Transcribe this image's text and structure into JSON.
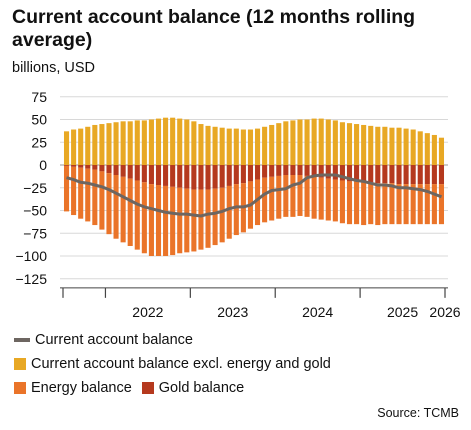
{
  "chart_data": {
    "type": "bar",
    "title": "Current account balance (12 months rolling average)",
    "ylabel": "billions, USD",
    "source": "Source: TCMB",
    "ylim": [
      -135,
      80
    ],
    "yticks": [
      75,
      50,
      25,
      0,
      -25,
      -50,
      -75,
      -100,
      -125
    ],
    "ytick_labels": [
      "75",
      "50",
      "25",
      "0",
      "−25",
      "−50",
      "−75",
      "−100",
      "−125"
    ],
    "x_labels": [
      "2022",
      "2023",
      "2024",
      "2025",
      "2026"
    ],
    "x_start": "2021-07",
    "x_end": "2026-01",
    "colors": {
      "current_account": "#6d6661",
      "excl_energy_gold": "#e8a824",
      "energy": "#ea7429",
      "gold": "#b5391e"
    },
    "series": [
      {
        "name": "Current account balance excl. energy and gold",
        "key": "excl_energy_gold",
        "values": [
          37,
          39,
          40,
          42,
          44,
          45,
          46,
          47,
          48,
          48,
          49,
          49,
          50,
          51,
          52,
          52,
          51,
          50,
          48,
          45,
          43,
          42,
          41,
          40,
          40,
          39,
          39,
          40,
          42,
          44,
          46,
          48,
          49,
          50,
          50,
          51,
          51,
          50,
          49,
          47,
          46,
          45,
          44,
          43,
          42,
          42,
          41,
          41,
          40,
          39,
          37,
          35,
          33,
          30
        ]
      },
      {
        "name": "Energy balance",
        "key": "energy",
        "values": [
          -50,
          -53,
          -56,
          -58,
          -61,
          -64,
          -67,
          -70,
          -72,
          -74,
          -76,
          -78,
          -79,
          -78,
          -77,
          -75,
          -72,
          -70,
          -68,
          -66,
          -64,
          -62,
          -60,
          -58,
          -56,
          -54,
          -52,
          -50,
          -49,
          -48,
          -47,
          -46,
          -46,
          -45,
          -45,
          -46,
          -46,
          -46,
          -46,
          -47,
          -47,
          -47,
          -47,
          -46,
          -46,
          -45,
          -45,
          -44,
          -44,
          -44,
          -44,
          -44,
          -44,
          -44
        ]
      },
      {
        "name": "Gold balance",
        "key": "gold",
        "values": [
          -1,
          -2,
          -3,
          -4,
          -5,
          -7,
          -9,
          -11,
          -13,
          -15,
          -17,
          -19,
          -21,
          -22,
          -23,
          -24,
          -25,
          -26,
          -27,
          -27,
          -27,
          -26,
          -25,
          -23,
          -21,
          -20,
          -18,
          -16,
          -14,
          -13,
          -12,
          -11,
          -11,
          -11,
          -12,
          -13,
          -14,
          -15,
          -16,
          -17,
          -18,
          -18,
          -19,
          -19,
          -20,
          -20,
          -20,
          -21,
          -21,
          -21,
          -21,
          -21,
          -21,
          -21
        ]
      },
      {
        "name": "Current account balance",
        "key": "current_account",
        "values": [
          -14,
          -16,
          -19,
          -20,
          -22,
          -24,
          -27,
          -31,
          -35,
          -39,
          -43,
          -46,
          -48,
          -50,
          -52,
          -53,
          -54,
          -54,
          -55,
          -56,
          -54,
          -53,
          -51,
          -48,
          -46,
          -46,
          -44,
          -38,
          -32,
          -28,
          -27,
          -26,
          -22,
          -20,
          -14,
          -12,
          -11,
          -11,
          -11,
          -13,
          -15,
          -17,
          -18,
          -20,
          -22,
          -22,
          -23,
          -25,
          -25,
          -26,
          -27,
          -29,
          -32,
          -35
        ]
      }
    ]
  },
  "legend": {
    "current_account": "Current account balance",
    "excl_energy_gold": "Current account balance excl. energy and gold",
    "energy": "Energy balance",
    "gold": "Gold balance"
  }
}
